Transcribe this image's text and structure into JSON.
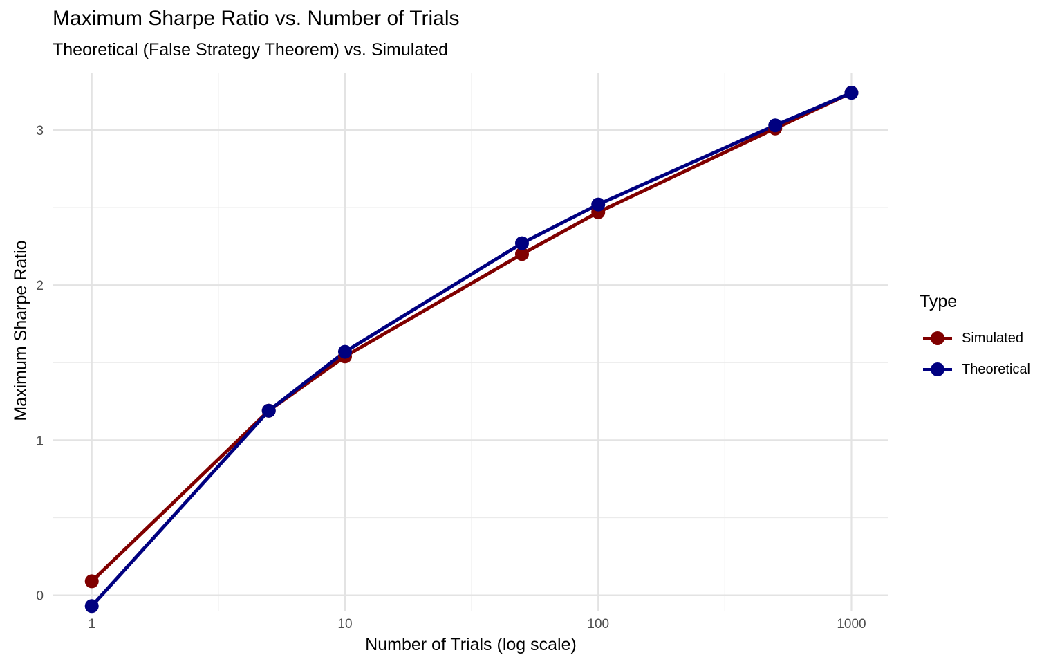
{
  "chart_data": {
    "type": "line",
    "title": "Maximum Sharpe Ratio vs. Number of Trials",
    "subtitle": "Theoretical (False Strategy Theorem) vs. Simulated",
    "xlabel": "Number of Trials (log scale)",
    "ylabel": "Maximum Sharpe Ratio",
    "x_scale": "log10",
    "xlim": [
      0.7,
      1400
    ],
    "ylim": [
      -0.1,
      3.37
    ],
    "x_ticks": [
      1,
      10,
      100,
      1000
    ],
    "x_tick_labels": [
      "1",
      "10",
      "100",
      "1000"
    ],
    "y_ticks": [
      0,
      1,
      2,
      3
    ],
    "y_tick_labels": [
      "0",
      "1",
      "2",
      "3"
    ],
    "grid": true,
    "legend_title": "Type",
    "legend_position": "right",
    "series": [
      {
        "name": "Simulated",
        "color": "#800000",
        "x": [
          1,
          5,
          10,
          50,
          100,
          500,
          1000
        ],
        "y": [
          0.09,
          1.19,
          1.54,
          2.2,
          2.47,
          3.01,
          3.24
        ]
      },
      {
        "name": "Theoretical",
        "color": "#000080",
        "x": [
          1,
          5,
          10,
          50,
          100,
          500,
          1000
        ],
        "y": [
          -0.07,
          1.19,
          1.57,
          2.27,
          2.52,
          3.03,
          3.24
        ]
      }
    ]
  }
}
